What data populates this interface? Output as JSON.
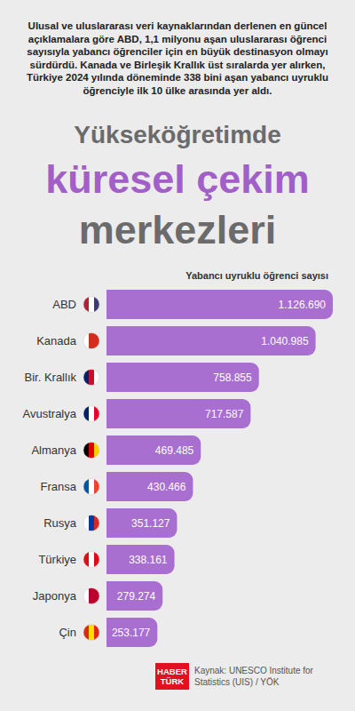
{
  "chart_data": {
    "type": "bar",
    "orientation": "horizontal",
    "title": [
      "Yükseköğretimde",
      "küresel çekim",
      "merkezleri"
    ],
    "subtitle": "Ulusal ve uluslararası veri kaynaklarından derlenen en güncel açıklamalara göre ABD, 1,1 milyonu aşan uluslararası öğrenci sayısıyla yabancı öğrenciler için en büyük destinasyon olmayı sürdürdü. Kanada ve Birleşik Krallık üst sıralarda yer alırken, Türkiye 2024 yılında döneminde 338 bini aşan yabancı uyruklu öğrenciyle ilk 10 ülke arasında yer aldı.",
    "xlabel": "Yabancı uyruklu öğrenci sayısı",
    "categories": [
      "ABD",
      "Kanada",
      "Bir. Krallık",
      "Avustralya",
      "Almanya",
      "Fransa",
      "Rusya",
      "Türkiye",
      "Japonya",
      "Çin"
    ],
    "values": [
      1126690,
      1040985,
      758855,
      717587,
      469485,
      430466,
      351127,
      338161,
      279274,
      253177
    ],
    "value_labels": [
      "1.126.690",
      "1.040.985",
      "758.855",
      "717.587",
      "469.485",
      "430.466",
      "351.127",
      "338.161",
      "279.274",
      "253.177"
    ],
    "color": "#a86ed0",
    "data_labels": true,
    "tick_labels": "y",
    "grid": false,
    "source": "Kaynak: UNESCO Institute for Statistics (UIS) / YÖK",
    "logo": [
      "HABER",
      "TÜRK"
    ]
  }
}
